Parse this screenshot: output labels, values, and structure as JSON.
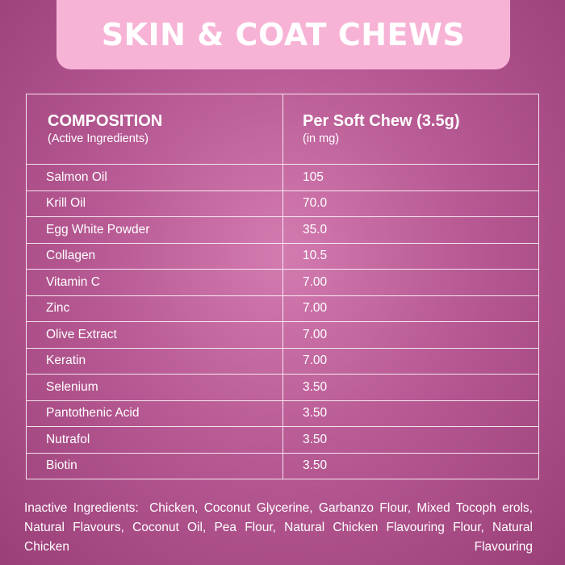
{
  "title": "SKIN & COAT CHEWS",
  "table": {
    "col1_heading": "COMPOSITION",
    "col1_sub": "(Active Ingredients)",
    "col2_heading": "Per Soft Chew (3.5g)",
    "col2_sub": "(in mg)",
    "rows": [
      {
        "name": "Salmon Oil",
        "amount": "105"
      },
      {
        "name": "Krill Oil",
        "amount": "70.0"
      },
      {
        "name": "Egg White Powder",
        "amount": "35.0"
      },
      {
        "name": "Collagen",
        "amount": "10.5"
      },
      {
        "name": "Vitamin C",
        "amount": "7.00"
      },
      {
        "name": "Zinc",
        "amount": "7.00"
      },
      {
        "name": "Olive Extract",
        "amount": "7.00"
      },
      {
        "name": "Keratin",
        "amount": "7.00"
      },
      {
        "name": "Selenium",
        "amount": "3.50"
      },
      {
        "name": "Pantothenic Acid",
        "amount": "3.50"
      },
      {
        "name": "Nutrafol",
        "amount": "3.50"
      },
      {
        "name": "Biotin",
        "amount": "3.50"
      }
    ]
  },
  "inactive": {
    "label": "Inactive Ingredients:",
    "text": "Chicken, Coconut Glycerine, Garbanzo Flour, Mixed Tocoph erols, Natural Flavours, Coconut Oil, Pea Flour, Natural Chicken Flavouring Flour, Natural Chicken Flavouring"
  },
  "colors": {
    "background": "#b85a94",
    "banner": "#f7b3d6",
    "text": "#ffffff"
  }
}
